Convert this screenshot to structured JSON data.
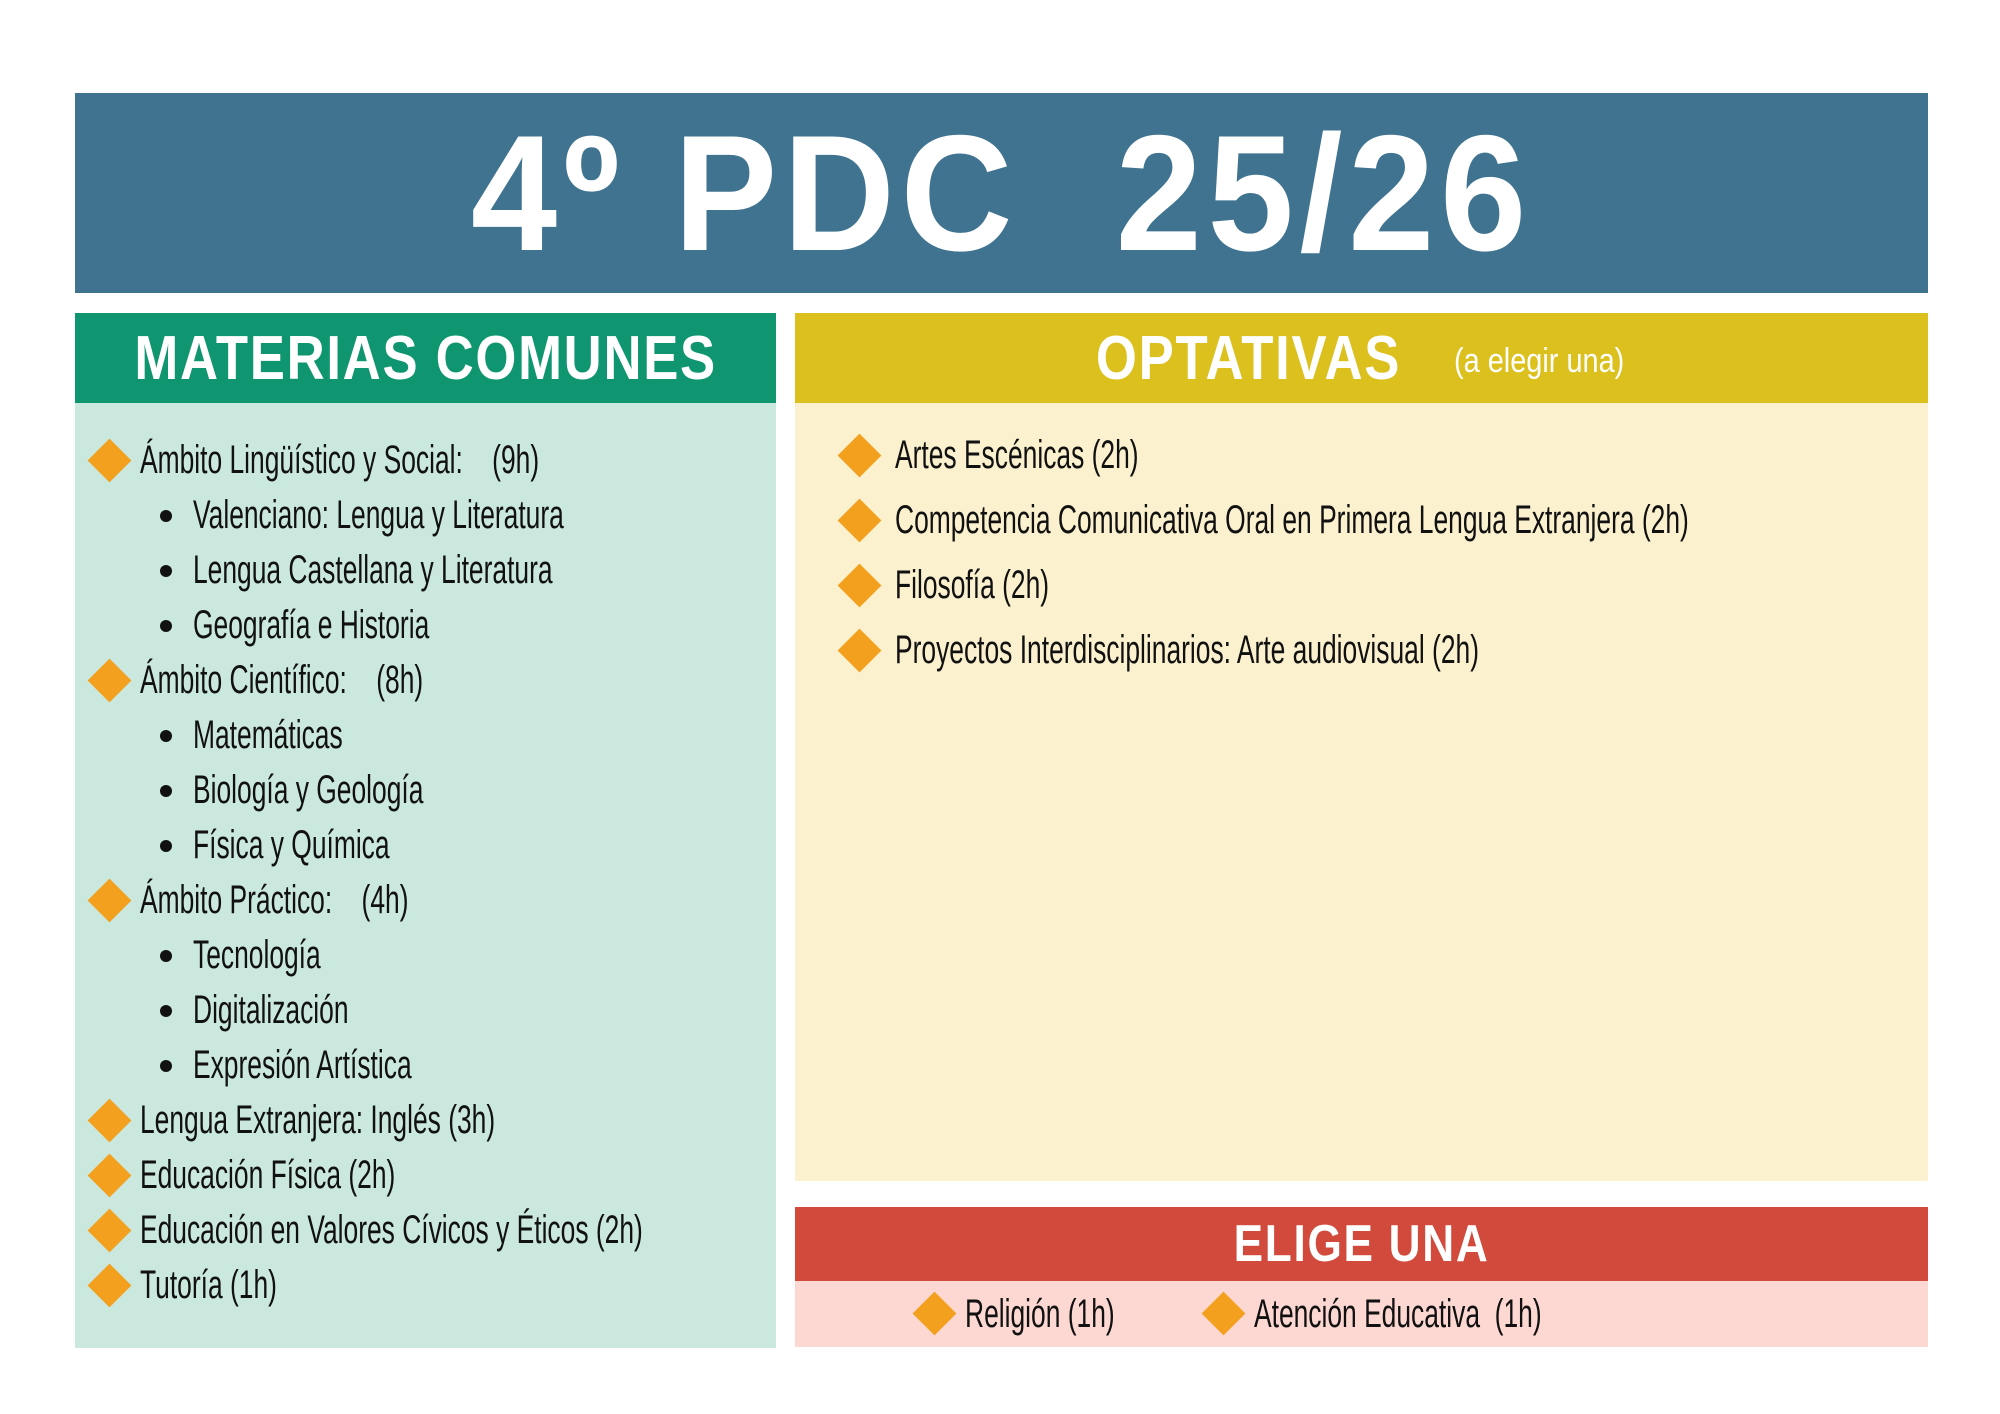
{
  "title": "4º PDC  25/26",
  "colors": {
    "banner": "#3F7390",
    "green": "#0F9671",
    "mint": "#CBE8DE",
    "gold": "#DCC11E",
    "cream": "#FBF1CE",
    "red": "#D14A3C",
    "pink": "#FDD8D2",
    "orange": "#F2A01E",
    "ink": "#111111"
  },
  "left_panel": {
    "header": "MATERIAS COMUNES",
    "items": [
      {
        "type": "diamond",
        "text": "Ámbito Lingüístico y Social:    (9h)"
      },
      {
        "type": "dot",
        "text": "Valenciano: Lengua y Literatura"
      },
      {
        "type": "dot",
        "text": "Lengua Castellana y Literatura"
      },
      {
        "type": "dot",
        "text": "Geografía e Historia"
      },
      {
        "type": "diamond",
        "text": "Ámbito Científico:    (8h)"
      },
      {
        "type": "dot",
        "text": "Matemáticas"
      },
      {
        "type": "dot",
        "text": "Biología y Geología"
      },
      {
        "type": "dot",
        "text": "Física y Química"
      },
      {
        "type": "diamond",
        "text": "Ámbito Práctico:    (4h)"
      },
      {
        "type": "dot",
        "text": "Tecnología"
      },
      {
        "type": "dot",
        "text": "Digitalización"
      },
      {
        "type": "dot",
        "text": "Expresión Artística"
      },
      {
        "type": "diamond",
        "text": "Lengua Extranjera: Inglés (3h)"
      },
      {
        "type": "diamond",
        "text": "Educación Física (2h)"
      },
      {
        "type": "diamond",
        "text": "Educación en Valores Cívicos y Éticos (2h)"
      },
      {
        "type": "diamond",
        "text": "Tutoría (1h)"
      }
    ]
  },
  "right_panel": {
    "header": "OPTATIVAS",
    "header_note": "(a elegir una)",
    "items": [
      {
        "type": "diamond",
        "text": "Artes Escénicas (2h)"
      },
      {
        "type": "diamond",
        "text": "Competencia Comunicativa Oral en Primera Lengua Extranjera (2h)"
      },
      {
        "type": "diamond",
        "text": "Filosofía (2h)"
      },
      {
        "type": "diamond",
        "text": "Proyectos Interdisciplinarios: Arte audiovisual (2h)"
      }
    ]
  },
  "choose_one": {
    "header": "ELIGE UNA",
    "items": [
      {
        "type": "diamond",
        "text": "Religión (1h)"
      },
      {
        "type": "diamond",
        "text": "Atención Educativa  (1h)"
      }
    ]
  }
}
